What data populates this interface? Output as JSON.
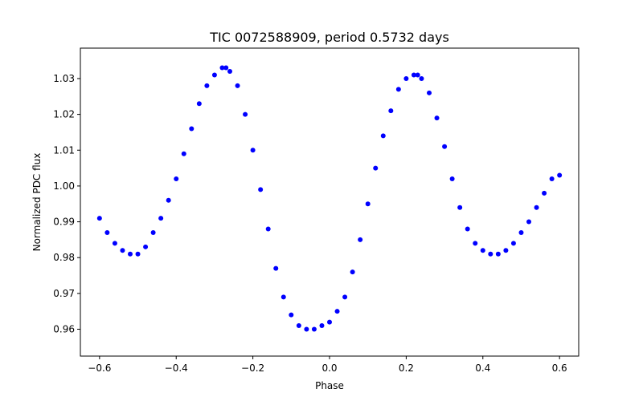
{
  "chart_data": {
    "type": "scatter",
    "title": "TIC 0072588909, period 0.5732 days",
    "xlabel": "Phase",
    "ylabel": "Normalized PDC flux",
    "xlim": [
      -0.65,
      0.65
    ],
    "ylim": [
      0.9525,
      1.0385
    ],
    "xticks": [
      -0.6,
      -0.4,
      -0.2,
      0.0,
      0.2,
      0.4,
      0.6
    ],
    "xtick_labels": [
      "−0.6",
      "−0.4",
      "−0.2",
      "0.0",
      "0.2",
      "0.4",
      "0.6"
    ],
    "yticks": [
      0.96,
      0.97,
      0.98,
      0.99,
      1.0,
      1.01,
      1.02,
      1.03
    ],
    "ytick_labels": [
      "0.96",
      "0.97",
      "0.98",
      "0.99",
      "1.00",
      "1.01",
      "1.02",
      "1.03"
    ],
    "grid": false,
    "marker_color": "#0000ff",
    "series": [
      {
        "x": [
          -0.6,
          -0.58,
          -0.56,
          -0.54,
          -0.52,
          -0.5,
          -0.48,
          -0.46,
          -0.44,
          -0.42,
          -0.4,
          -0.38,
          -0.36,
          -0.34,
          -0.32,
          -0.3,
          -0.28,
          -0.27,
          -0.26,
          -0.24,
          -0.22,
          -0.2,
          -0.18,
          -0.16,
          -0.14,
          -0.12,
          -0.1,
          -0.08,
          -0.06,
          -0.04,
          -0.02,
          0.0,
          0.02,
          0.04,
          0.06,
          0.08,
          0.1,
          0.12,
          0.14,
          0.16,
          0.18,
          0.2,
          0.22,
          0.23,
          0.24,
          0.26,
          0.28,
          0.3,
          0.32,
          0.34,
          0.36,
          0.38,
          0.4,
          0.42,
          0.44,
          0.46,
          0.48,
          0.5,
          0.52,
          0.54,
          0.56,
          0.58,
          0.6
        ],
        "y": [
          0.991,
          0.987,
          0.984,
          0.982,
          0.981,
          0.981,
          0.983,
          0.987,
          0.991,
          0.996,
          1.002,
          1.009,
          1.016,
          1.023,
          1.028,
          1.031,
          1.033,
          1.033,
          1.032,
          1.028,
          1.02,
          1.01,
          0.999,
          0.988,
          0.977,
          0.969,
          0.964,
          0.961,
          0.96,
          0.96,
          0.961,
          0.962,
          0.965,
          0.969,
          0.976,
          0.985,
          0.995,
          1.005,
          1.014,
          1.021,
          1.027,
          1.03,
          1.031,
          1.031,
          1.03,
          1.026,
          1.019,
          1.011,
          1.002,
          0.994,
          0.988,
          0.984,
          0.982,
          0.981,
          0.981,
          0.982,
          0.984,
          0.987,
          0.99,
          0.994,
          0.998,
          1.002,
          1.003
        ]
      }
    ]
  }
}
